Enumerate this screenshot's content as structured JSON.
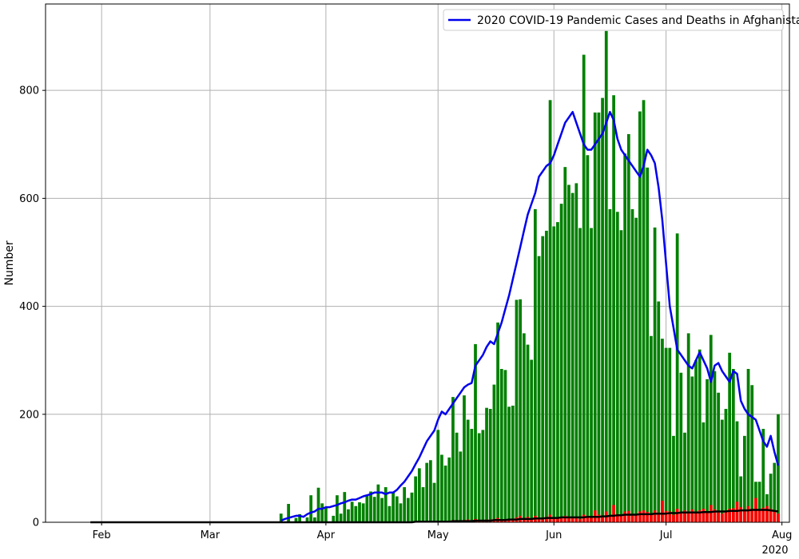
{
  "chart_data": {
    "type": "bar",
    "title": "",
    "xlabel": "",
    "ylabel": "Number",
    "xlim": [
      "2020-01-17",
      "2020-08-03"
    ],
    "ylim": [
      0,
      960
    ],
    "grid": true,
    "legend_position": "top-right",
    "legend": [
      {
        "label": "2020 COVID-19 Pandemic Cases and Deaths in Afghanistan",
        "color": "#0000ee"
      }
    ],
    "x_ticks": [
      {
        "date": "2020-02-01",
        "label": "Feb"
      },
      {
        "date": "2020-03-01",
        "label": "Mar"
      },
      {
        "date": "2020-04-01",
        "label": "Apr"
      },
      {
        "date": "2020-05-01",
        "label": "May"
      },
      {
        "date": "2020-06-01",
        "label": "Jun"
      },
      {
        "date": "2020-07-01",
        "label": "Jul"
      },
      {
        "date": "2020-08-01",
        "label": "Aug"
      }
    ],
    "x_offset_label": "2020",
    "y_ticks": [
      0,
      200,
      400,
      600,
      800
    ],
    "start_date": "2020-03-20",
    "series": [
      {
        "type": "bar",
        "color": "#008000",
        "values": [
          16,
          0,
          34,
          0,
          8,
          15,
          0,
          9,
          50,
          9,
          64,
          35,
          28,
          0,
          12,
          50,
          16,
          56,
          24,
          38,
          30,
          37,
          35,
          51,
          57,
          47,
          70,
          45,
          65,
          30,
          55,
          48,
          35,
          65,
          45,
          55,
          85,
          100,
          65,
          110,
          115,
          73,
          171,
          125,
          105,
          120,
          232,
          166,
          131,
          235,
          190,
          173,
          330,
          165,
          171,
          212,
          210,
          255,
          370,
          284,
          282,
          214,
          216,
          412,
          413,
          350,
          329,
          301,
          580,
          493,
          530,
          540,
          782,
          548,
          556,
          590,
          658,
          625,
          610,
          628,
          545,
          866,
          680,
          545,
          759,
          759,
          786,
          910,
          580,
          791,
          575,
          541,
          683,
          719,
          580,
          564,
          761,
          782,
          657,
          345,
          546,
          409,
          340,
          323,
          323,
          160,
          535,
          277,
          166,
          350,
          270,
          300,
          320,
          185,
          265,
          347,
          280,
          240,
          190,
          210,
          314,
          284,
          187,
          85,
          160,
          284,
          254,
          75,
          75,
          173,
          52,
          90,
          110,
          200
        ]
      },
      {
        "type": "bar",
        "color": "#ff0000",
        "values": [
          0,
          0,
          0,
          0,
          0,
          0,
          0,
          0,
          0,
          0,
          0,
          0,
          0,
          0,
          0,
          0,
          0,
          0,
          0,
          1,
          0,
          0,
          1,
          0,
          0,
          1,
          0,
          1,
          1,
          0,
          1,
          1,
          0,
          1,
          1,
          1,
          1,
          2,
          1,
          2,
          2,
          1,
          3,
          2,
          2,
          3,
          4,
          3,
          3,
          4,
          5,
          3,
          6,
          3,
          4,
          5,
          5,
          6,
          8,
          5,
          6,
          5,
          5,
          9,
          12,
          8,
          10,
          7,
          12,
          8,
          9,
          10,
          14,
          9,
          8,
          10,
          12,
          10,
          9,
          8,
          6,
          14,
          12,
          8,
          22,
          14,
          11,
          20,
          12,
          32,
          15,
          14,
          20,
          21,
          14,
          15,
          20,
          22,
          19,
          15,
          22,
          18,
          40,
          21,
          20,
          14,
          25,
          18,
          22,
          20,
          24,
          20,
          22,
          25,
          18,
          32,
          24,
          20,
          16,
          20,
          25,
          26,
          38,
          28,
          22,
          30,
          25,
          45,
          22,
          27,
          30,
          25,
          20,
          16
        ]
      },
      {
        "type": "line",
        "name": "2020 COVID-19 Pandemic Cases and Deaths in Afghanistan",
        "color": "#0000ee",
        "values": [
          3,
          6,
          8,
          10,
          12,
          12,
          10,
          15,
          18,
          20,
          25,
          25,
          28,
          28,
          30,
          32,
          35,
          37,
          40,
          42,
          42,
          45,
          48,
          50,
          52,
          55,
          55,
          55,
          52,
          55,
          55,
          60,
          68,
          75,
          85,
          95,
          108,
          120,
          135,
          150,
          160,
          170,
          190,
          205,
          200,
          210,
          220,
          230,
          240,
          250,
          255,
          258,
          290,
          300,
          310,
          325,
          335,
          330,
          350,
          370,
          395,
          420,
          450,
          480,
          510,
          540,
          570,
          590,
          610,
          640,
          650,
          660,
          665,
          680,
          700,
          720,
          740,
          750,
          760,
          740,
          720,
          700,
          690,
          690,
          700,
          710,
          720,
          740,
          760,
          745,
          710,
          690,
          680,
          670,
          660,
          650,
          640,
          660,
          690,
          680,
          665,
          620,
          560,
          480,
          400,
          360,
          320,
          310,
          300,
          290,
          285,
          300,
          315,
          300,
          285,
          260,
          290,
          295,
          280,
          270,
          260,
          280,
          275,
          225,
          210,
          200,
          195,
          190,
          170,
          150,
          140,
          160,
          130,
          105
        ]
      },
      {
        "type": "line",
        "color": "#000000",
        "values": [
          0,
          0,
          0,
          0,
          0,
          0,
          0,
          0,
          0,
          0,
          0,
          0,
          0,
          0,
          0,
          0,
          0,
          0,
          0,
          0,
          0,
          0,
          0,
          0,
          0,
          0,
          0,
          0,
          0,
          0,
          0,
          0,
          0,
          0,
          0,
          0,
          1,
          1,
          1,
          1,
          1,
          1,
          1,
          1,
          1,
          1,
          2,
          2,
          2,
          2,
          2,
          2,
          3,
          3,
          3,
          3,
          3,
          4,
          4,
          4,
          4,
          5,
          5,
          5,
          6,
          6,
          6,
          6,
          7,
          7,
          7,
          8,
          8,
          8,
          8,
          9,
          9,
          9,
          9,
          9,
          9,
          9,
          10,
          10,
          10,
          10,
          11,
          11,
          12,
          12,
          13,
          13,
          14,
          14,
          14,
          14,
          15,
          15,
          15,
          15,
          16,
          16,
          16,
          16,
          17,
          17,
          17,
          18,
          18,
          18,
          18,
          18,
          18,
          19,
          19,
          19,
          20,
          20,
          20,
          20,
          21,
          21,
          21,
          22,
          22,
          22,
          23,
          23,
          23,
          23,
          23,
          22,
          21,
          20
        ]
      }
    ]
  }
}
